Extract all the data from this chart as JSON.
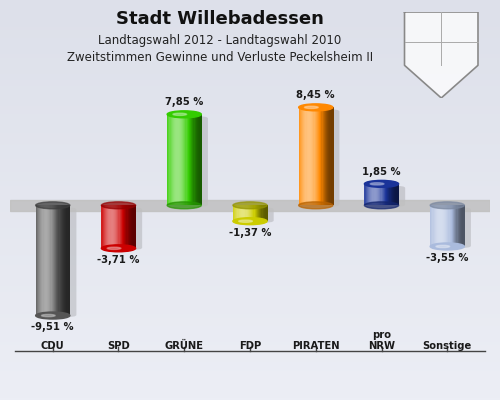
{
  "title": "Stadt Willebadessen",
  "subtitle1": "Landtagswahl 2012 - Landtagswahl 2010",
  "subtitle2": "Zweitstimmen Gewinne und Verluste Peckelsheim II",
  "categories": [
    "CDU",
    "SPD",
    "GRÜNE",
    "FDP",
    "PIRATEN",
    "pro\nNRW",
    "Sonstige"
  ],
  "values": [
    -9.51,
    -3.71,
    7.85,
    -1.37,
    8.45,
    1.85,
    -3.55
  ],
  "value_labels": [
    "-9,51 %",
    "-3,71 %",
    "7,85 %",
    "-1,37 %",
    "8,45 %",
    "1,85 %",
    "-3,55 %"
  ],
  "colors": [
    "#555555",
    "#cc0000",
    "#33cc00",
    "#cccc00",
    "#ff8800",
    "#1a3399",
    "#aabbdd"
  ],
  "background_top": "#dde0ea",
  "background_bottom": "#eceef5",
  "bar_width": 0.52,
  "ylim": [
    -13.0,
    11.5
  ],
  "figsize": [
    5.0,
    4.0
  ],
  "dpi": 100
}
